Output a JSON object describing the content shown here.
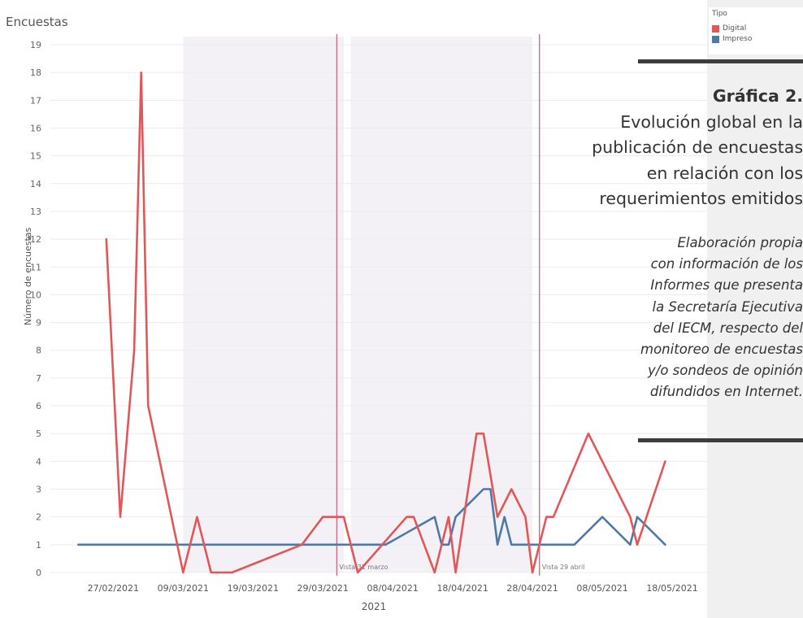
{
  "worksheet_title": "Encuestas",
  "legend": {
    "title": "Tipo",
    "items": [
      {
        "label": "Digital",
        "color": "#e15759"
      },
      {
        "label": "Impreso",
        "color": "#4e79a7"
      }
    ]
  },
  "caption": {
    "title_bold": "Gráfica 2.",
    "title_lines": [
      "Evolución global en la",
      "publicación de encuestas",
      "en relación con los",
      "requerimientos emitidos"
    ],
    "source_lines": [
      "Elaboración propia",
      "con información de los",
      "Informes que presenta",
      "la Secretaría Ejecutiva",
      "del IECM, respecto del",
      "monitoreo de encuestas",
      "y/o sondeos de opinión",
      "difundidos en Internet."
    ]
  },
  "chart_data": {
    "type": "line",
    "title": "Encuestas",
    "xlabel": "2021",
    "ylabel": "Número de encuestas",
    "ylim": [
      0,
      19
    ],
    "xlim": [
      "2021-02-18",
      "2021-05-23"
    ],
    "x_ticks": [
      "27/02/2021",
      "09/03/2021",
      "19/03/2021",
      "29/03/2021",
      "08/04/2021",
      "18/04/2021",
      "28/04/2021",
      "08/05/2021",
      "18/05/2021"
    ],
    "y_ticks": [
      0,
      1,
      2,
      3,
      4,
      5,
      6,
      7,
      8,
      9,
      10,
      11,
      12,
      13,
      14,
      15,
      16,
      17,
      18,
      19
    ],
    "grid": true,
    "legend_position": "top-right",
    "series": [
      {
        "name": "Digital",
        "color": "#e15759",
        "points": [
          [
            "2021-02-26",
            12
          ],
          [
            "2021-02-28",
            2
          ],
          [
            "2021-03-02",
            8
          ],
          [
            "2021-03-03",
            18
          ],
          [
            "2021-03-04",
            6
          ],
          [
            "2021-03-09",
            0
          ],
          [
            "2021-03-11",
            2
          ],
          [
            "2021-03-13",
            0
          ],
          [
            "2021-03-16",
            0
          ],
          [
            "2021-03-26",
            1
          ],
          [
            "2021-03-29",
            2
          ],
          [
            "2021-04-01",
            2
          ],
          [
            "2021-04-03",
            0
          ],
          [
            "2021-04-10",
            2
          ],
          [
            "2021-04-11",
            2
          ],
          [
            "2021-04-14",
            0
          ],
          [
            "2021-04-16",
            2
          ],
          [
            "2021-04-17",
            0
          ],
          [
            "2021-04-20",
            5
          ],
          [
            "2021-04-21",
            5
          ],
          [
            "2021-04-23",
            2
          ],
          [
            "2021-04-25",
            3
          ],
          [
            "2021-04-27",
            2
          ],
          [
            "2021-04-28",
            0
          ],
          [
            "2021-04-30",
            2
          ],
          [
            "2021-05-01",
            2
          ],
          [
            "2021-05-06",
            5
          ],
          [
            "2021-05-12",
            2
          ],
          [
            "2021-05-13",
            1
          ],
          [
            "2021-05-17",
            4
          ]
        ]
      },
      {
        "name": "Impreso",
        "color": "#4e79a7",
        "points": [
          [
            "2021-02-22",
            1
          ],
          [
            "2021-04-07",
            1
          ],
          [
            "2021-04-14",
            2
          ],
          [
            "2021-04-15",
            1
          ],
          [
            "2021-04-16",
            1
          ],
          [
            "2021-04-17",
            2
          ],
          [
            "2021-04-21",
            3
          ],
          [
            "2021-04-22",
            3
          ],
          [
            "2021-04-23",
            1
          ],
          [
            "2021-04-24",
            2
          ],
          [
            "2021-04-25",
            1
          ],
          [
            "2021-05-04",
            1
          ],
          [
            "2021-05-08",
            2
          ],
          [
            "2021-05-12",
            1
          ],
          [
            "2021-05-13",
            2
          ],
          [
            "2021-05-17",
            1
          ]
        ]
      }
    ],
    "shaded_ranges": [
      [
        "2021-03-09",
        "2021-04-01"
      ],
      [
        "2021-04-02",
        "2021-04-28"
      ]
    ],
    "reference_lines": [
      {
        "date": "2021-03-31",
        "label": "Vista 31 marzo"
      },
      {
        "date": "2021-04-29",
        "label": "Vista 29 abril"
      }
    ]
  }
}
